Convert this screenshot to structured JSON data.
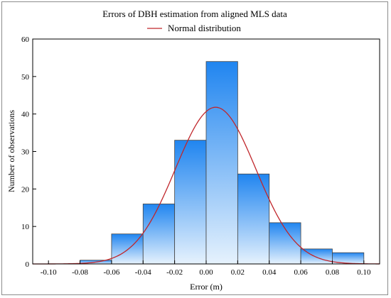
{
  "chart_data": {
    "type": "bar",
    "title": "Errors of DBH estimation from aligned MLS data",
    "xlabel": "Error (m)",
    "ylabel": "Number of observations",
    "xlim": [
      -0.11,
      0.11
    ],
    "ylim": [
      0,
      60
    ],
    "x_ticks": [
      -0.1,
      -0.08,
      -0.06,
      -0.04,
      -0.02,
      0.0,
      0.02,
      0.04,
      0.06,
      0.08,
      0.1
    ],
    "x_tick_labels": [
      "-0.10",
      "-0.08",
      "-0.06",
      "-0.04",
      "-0.02",
      "0.00",
      "0.02",
      "0.04",
      "0.06",
      "0.08",
      "0.10"
    ],
    "y_ticks": [
      0,
      10,
      20,
      30,
      40,
      50,
      60
    ],
    "y_tick_labels": [
      "0",
      "10",
      "20",
      "30",
      "40",
      "50",
      "60"
    ],
    "bin_edges": [
      -0.1,
      -0.08,
      -0.06,
      -0.04,
      -0.02,
      0.0,
      0.02,
      0.04,
      0.06,
      0.08,
      0.1
    ],
    "values": [
      0,
      1,
      8,
      16,
      33,
      54,
      24,
      11,
      4,
      3
    ],
    "series": [
      {
        "name": "Normal distribution",
        "type": "line",
        "mean": 0.006,
        "peak": 41.8,
        "sd": 0.0255
      }
    ],
    "legend": {
      "position": "top",
      "entries": [
        "Normal distribution"
      ]
    },
    "grid": false,
    "colors": {
      "bar_top": "#2085f0",
      "bar_bottom": "#e6f2fd",
      "bar_edge": "#444444",
      "curve": "#c0262b",
      "frame": "#8c8c8c"
    }
  }
}
